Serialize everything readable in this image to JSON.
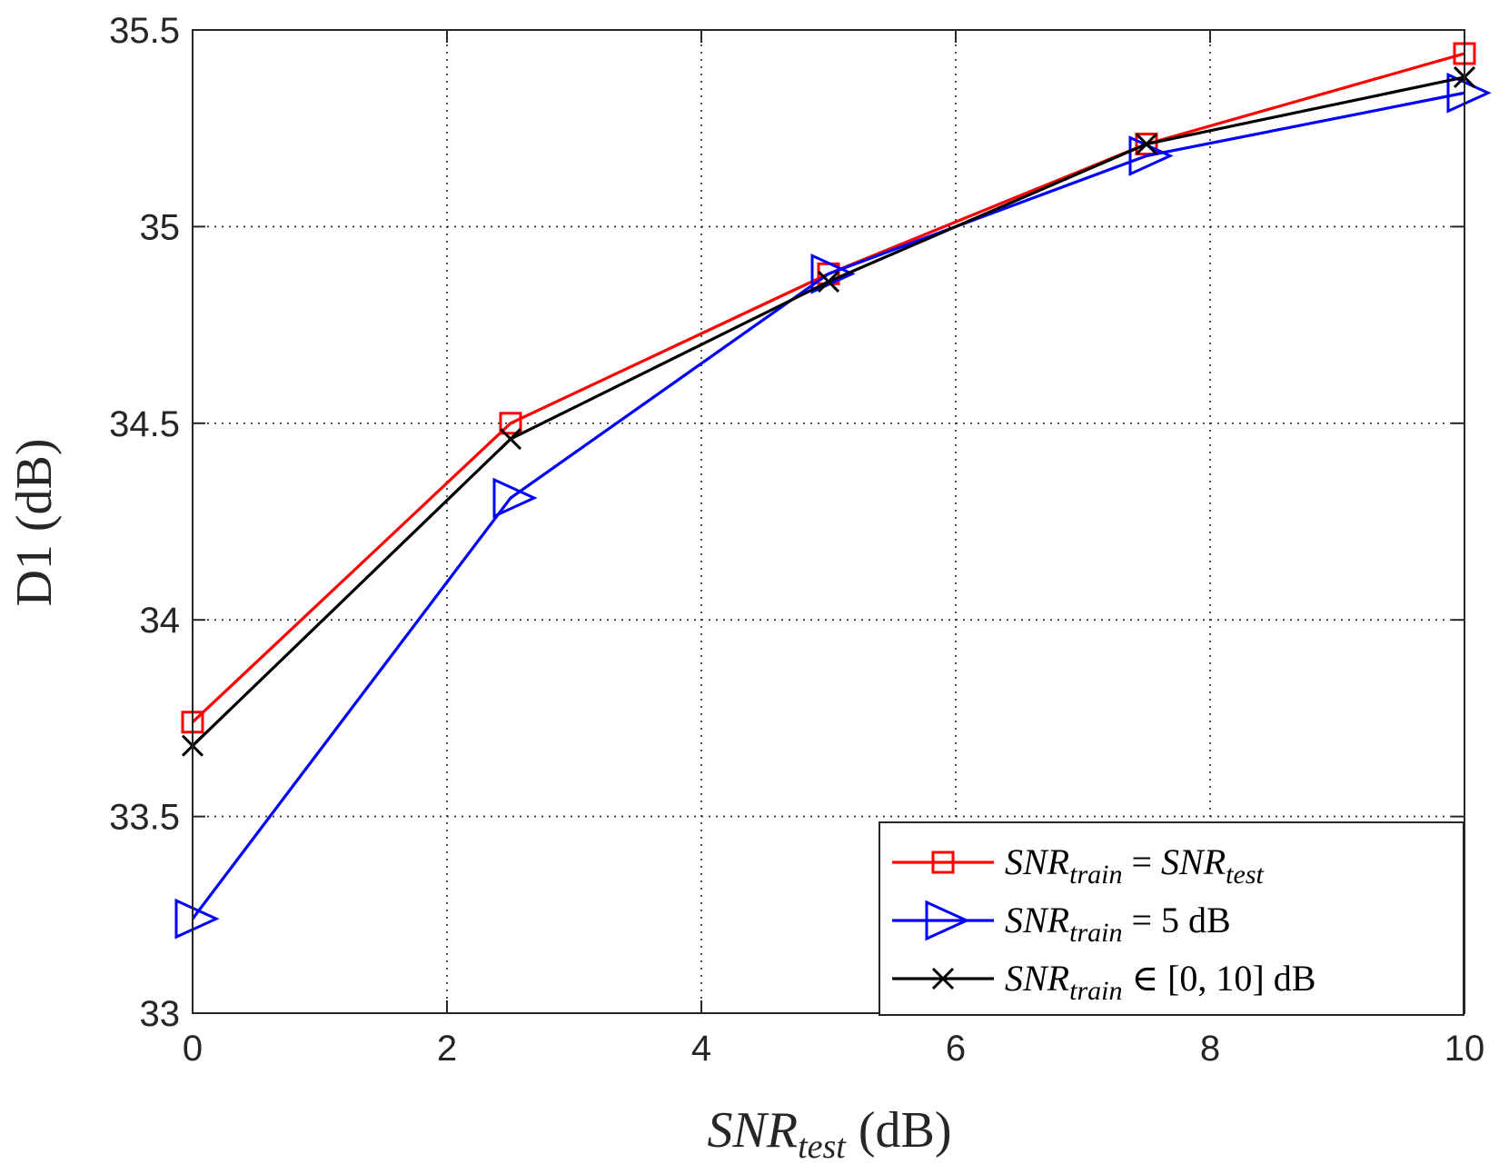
{
  "chart_data": {
    "type": "line",
    "title": "",
    "xlabel": {
      "var": "SNR",
      "sub": "test",
      "unit": " (dB)"
    },
    "ylabel": "D1 (dB)",
    "xlim": [
      0,
      10
    ],
    "ylim": [
      33,
      35.5
    ],
    "xticks": [
      0,
      2,
      4,
      6,
      8,
      10
    ],
    "xtick_labels": [
      "0",
      "2",
      "4",
      "6",
      "8",
      "10"
    ],
    "yticks": [
      33,
      33.5,
      34,
      34.5,
      35,
      35.5
    ],
    "ytick_labels": [
      "33",
      "33.5",
      "34",
      "34.5",
      "35",
      "35.5"
    ],
    "grid": true,
    "legend_position": "bottom-right",
    "x": [
      0,
      2.5,
      5,
      7.5,
      10
    ],
    "series": [
      {
        "name": "SNR_train = SNR_test",
        "legend": {
          "var": "SNR",
          "sub": "train",
          "rest": " = ",
          "var2": "SNR",
          "sub2": "test",
          "tail": ""
        },
        "color": "#ff0000",
        "marker": "square",
        "values": [
          33.74,
          34.5,
          34.88,
          35.21,
          35.44
        ]
      },
      {
        "name": "SNR_train = 5 dB",
        "legend": {
          "var": "SNR",
          "sub": "train",
          "rest": " = 5 dB",
          "var2": "",
          "sub2": "",
          "tail": ""
        },
        "color": "#0000ff",
        "marker": "triangle-right",
        "values": [
          33.24,
          34.31,
          34.88,
          35.18,
          35.34
        ]
      },
      {
        "name": "SNR_train ∈ [0, 10] dB",
        "legend": {
          "var": "SNR",
          "sub": "train",
          "rest": " ∈ [0, 10] dB",
          "var2": "",
          "sub2": "",
          "tail": ""
        },
        "color": "#000000",
        "marker": "x",
        "values": [
          33.68,
          34.46,
          34.86,
          35.21,
          35.38
        ]
      }
    ]
  }
}
